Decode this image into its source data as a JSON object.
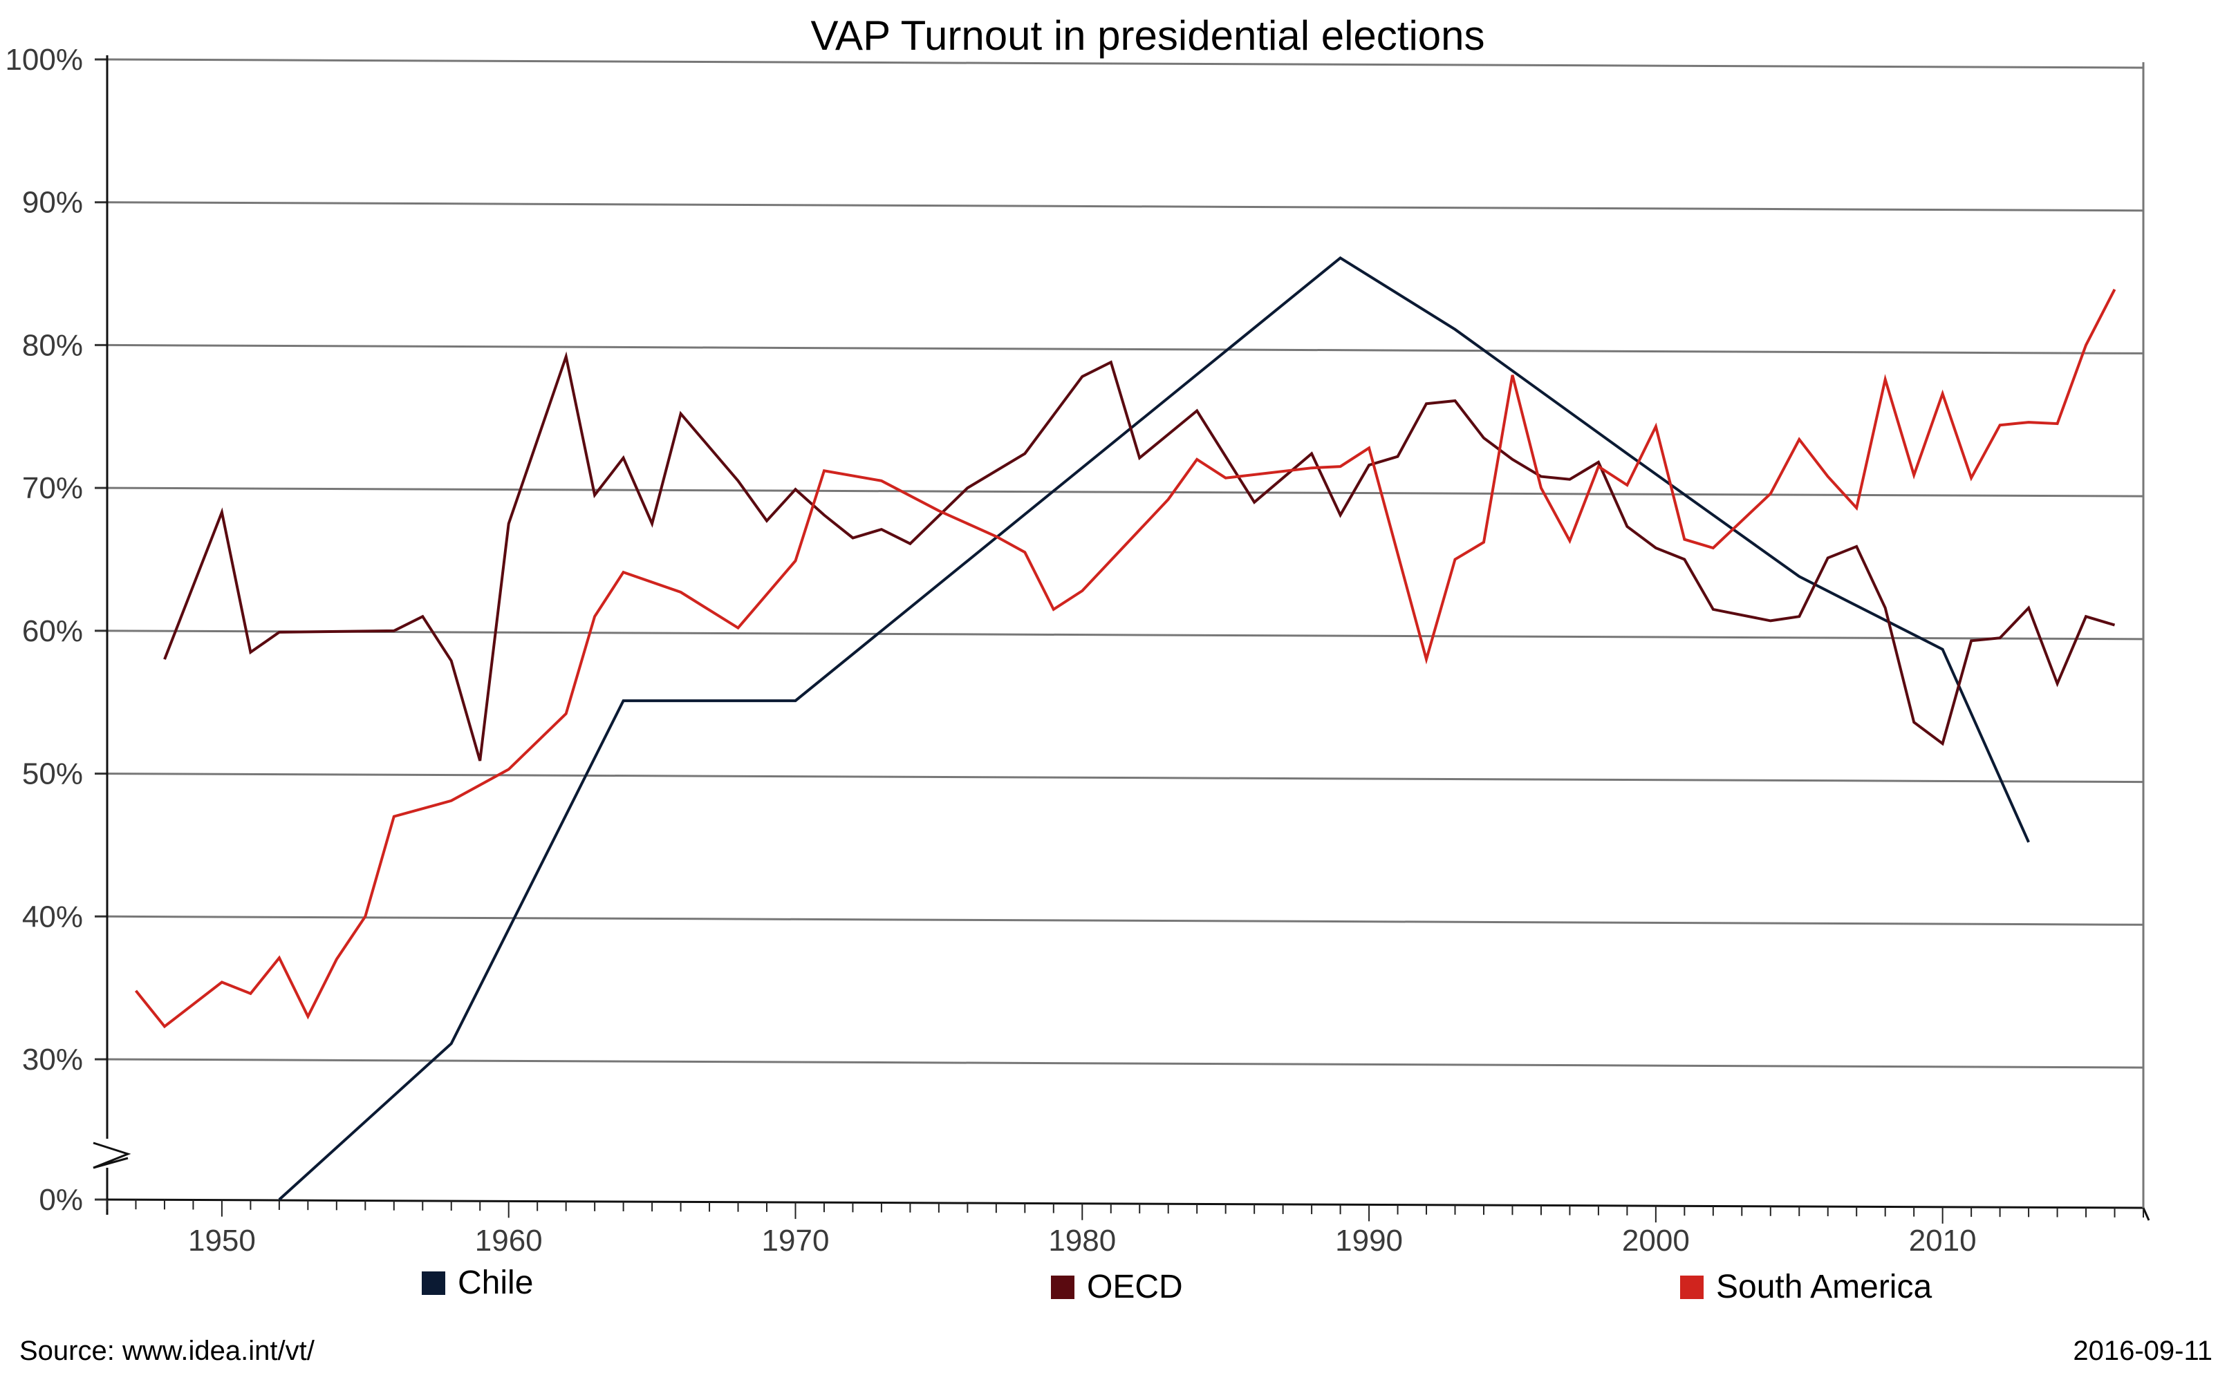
{
  "chart_data": {
    "type": "line",
    "title": "VAP Turnout in presidential elections",
    "xlabel": "",
    "ylabel": "",
    "xlim": [
      1946,
      2017
    ],
    "ylim": [
      0,
      100
    ],
    "broken_y_axis": true,
    "x_ticks": [
      1950,
      1960,
      1970,
      1980,
      1990,
      2000,
      2010
    ],
    "y_ticks": [
      {
        "value": 0,
        "label": "0%"
      },
      {
        "value": 30,
        "label": "30%"
      },
      {
        "value": 40,
        "label": "40%"
      },
      {
        "value": 50,
        "label": "50%"
      },
      {
        "value": 60,
        "label": "60%"
      },
      {
        "value": 70,
        "label": "70%"
      },
      {
        "value": 80,
        "label": "80%"
      },
      {
        "value": 90,
        "label": "90%"
      },
      {
        "value": 100,
        "label": "100%"
      }
    ],
    "grid": true,
    "legend_position": "bottom",
    "series": [
      {
        "name": "Chile",
        "color": "#0b1a33",
        "points": [
          [
            1952,
            27.8
          ],
          [
            1958,
            31.1
          ],
          [
            1964,
            55.1
          ],
          [
            1970,
            55.1
          ],
          [
            1989,
            86.1
          ],
          [
            1993,
            81.1
          ],
          [
            1999,
            72.4
          ],
          [
            2005,
            63.8
          ],
          [
            2010,
            58.7
          ],
          [
            2013,
            45.2
          ]
        ]
      },
      {
        "name": "OECD",
        "color": "#5a0a10",
        "points": [
          [
            1948,
            58.0
          ],
          [
            1950,
            68.3
          ],
          [
            1951,
            58.5
          ],
          [
            1952,
            59.9
          ],
          [
            1956,
            60.0
          ],
          [
            1957,
            61.0
          ],
          [
            1958,
            57.9
          ],
          [
            1959,
            50.9
          ],
          [
            1960,
            67.5
          ],
          [
            1962,
            79.2
          ],
          [
            1963,
            69.5
          ],
          [
            1964,
            72.1
          ],
          [
            1965,
            67.5
          ],
          [
            1966,
            75.2
          ],
          [
            1968,
            70.5
          ],
          [
            1969,
            67.7
          ],
          [
            1970,
            69.9
          ],
          [
            1971,
            68.1
          ],
          [
            1972,
            66.5
          ],
          [
            1973,
            67.1
          ],
          [
            1974,
            66.1
          ],
          [
            1976,
            70.0
          ],
          [
            1978,
            72.4
          ],
          [
            1980,
            77.8
          ],
          [
            1981,
            78.8
          ],
          [
            1982,
            72.1
          ],
          [
            1984,
            75.4
          ],
          [
            1986,
            69.0
          ],
          [
            1988,
            72.4
          ],
          [
            1989,
            68.1
          ],
          [
            1990,
            71.6
          ],
          [
            1991,
            72.2
          ],
          [
            1992,
            75.9
          ],
          [
            1993,
            76.1
          ],
          [
            1994,
            73.5
          ],
          [
            1995,
            72.0
          ],
          [
            1996,
            70.8
          ],
          [
            1997,
            70.6
          ],
          [
            1998,
            71.8
          ],
          [
            1999,
            67.3
          ],
          [
            2000,
            65.8
          ],
          [
            2001,
            65.0
          ],
          [
            2002,
            61.5
          ],
          [
            2004,
            60.7
          ],
          [
            2005,
            61.0
          ],
          [
            2006,
            65.1
          ],
          [
            2007,
            65.9
          ],
          [
            2008,
            61.6
          ],
          [
            2009,
            53.6
          ],
          [
            2010,
            52.1
          ],
          [
            2011,
            59.3
          ],
          [
            2012,
            59.5
          ],
          [
            2013,
            61.6
          ],
          [
            2014,
            56.3
          ],
          [
            2015,
            61.0
          ],
          [
            2016,
            60.4
          ]
        ]
      },
      {
        "name": "South America",
        "color": "#d0241e",
        "points": [
          [
            1947,
            34.8
          ],
          [
            1948,
            32.3
          ],
          [
            1950,
            35.4
          ],
          [
            1951,
            34.6
          ],
          [
            1952,
            37.1
          ],
          [
            1953,
            33.0
          ],
          [
            1954,
            37.0
          ],
          [
            1955,
            40.0
          ],
          [
            1956,
            47.0
          ],
          [
            1958,
            48.1
          ],
          [
            1960,
            50.3
          ],
          [
            1962,
            54.2
          ],
          [
            1963,
            61.0
          ],
          [
            1964,
            64.1
          ],
          [
            1966,
            62.7
          ],
          [
            1968,
            60.2
          ],
          [
            1970,
            64.9
          ],
          [
            1971,
            71.2
          ],
          [
            1973,
            70.5
          ],
          [
            1975,
            68.4
          ],
          [
            1977,
            66.6
          ],
          [
            1978,
            65.5
          ],
          [
            1979,
            61.5
          ],
          [
            1980,
            62.8
          ],
          [
            1983,
            69.2
          ],
          [
            1984,
            72.0
          ],
          [
            1985,
            70.7
          ],
          [
            1988,
            71.4
          ],
          [
            1989,
            71.5
          ],
          [
            1990,
            72.8
          ],
          [
            1992,
            58.0
          ],
          [
            1993,
            65.0
          ],
          [
            1994,
            66.2
          ],
          [
            1995,
            77.9
          ],
          [
            1996,
            70.0
          ],
          [
            1997,
            66.3
          ],
          [
            1998,
            71.5
          ],
          [
            1999,
            70.2
          ],
          [
            2000,
            74.3
          ],
          [
            2001,
            66.4
          ],
          [
            2002,
            65.8
          ],
          [
            2004,
            69.6
          ],
          [
            2005,
            73.4
          ],
          [
            2006,
            70.8
          ],
          [
            2007,
            68.6
          ],
          [
            2008,
            77.6
          ],
          [
            2009,
            70.9
          ],
          [
            2010,
            76.6
          ],
          [
            2011,
            70.7
          ],
          [
            2012,
            74.4
          ],
          [
            2013,
            74.6
          ],
          [
            2014,
            74.5
          ],
          [
            2015,
            80.0
          ],
          [
            2016,
            83.9
          ]
        ]
      }
    ]
  },
  "footer": {
    "source": "Source: www.idea.int/vt/",
    "date": "2016-09-11"
  }
}
